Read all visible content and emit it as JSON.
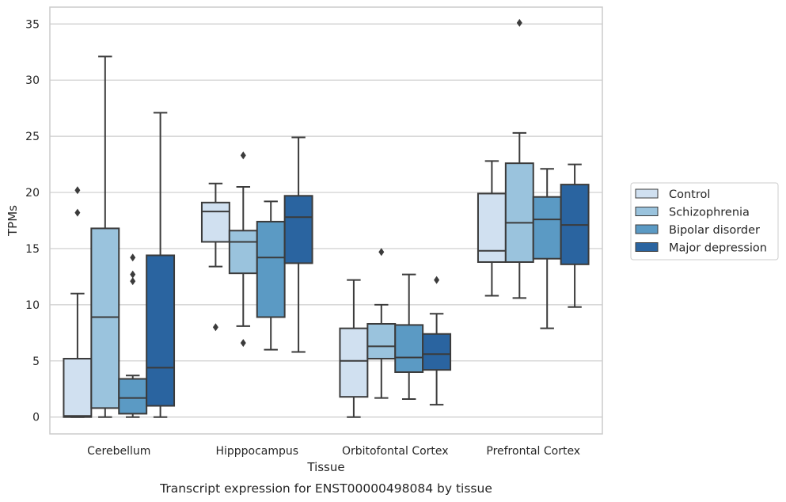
{
  "chart_data": {
    "type": "box",
    "caption": "Transcript expression for ENST00000498084 by tissue",
    "xlabel": "Tissue",
    "ylabel": "TPMs",
    "ylim": [
      -1.5,
      36.5
    ],
    "yticks": [
      0,
      5,
      10,
      15,
      20,
      25,
      30,
      35
    ],
    "grid": "horizontal",
    "legend_position": "right",
    "categories": [
      "Cerebellum",
      "Hipppocampus",
      "Orbitofontal Cortex",
      "Prefrontal Cortex"
    ],
    "series": [
      {
        "name": "Control",
        "color": "#d0e0f0",
        "boxes": [
          {
            "whisker_low": 0.0,
            "q1": 0.0,
            "median": 0.1,
            "q3": 5.2,
            "whisker_high": 11.0,
            "outliers": [
              18.2,
              20.2
            ]
          },
          {
            "whisker_low": 13.4,
            "q1": 15.6,
            "median": 18.3,
            "q3": 19.1,
            "whisker_high": 20.8,
            "outliers": [
              8.0
            ]
          },
          {
            "whisker_low": 0.0,
            "q1": 1.8,
            "median": 5.0,
            "q3": 7.9,
            "whisker_high": 12.2,
            "outliers": []
          },
          {
            "whisker_low": 10.8,
            "q1": 13.8,
            "median": 14.8,
            "q3": 19.9,
            "whisker_high": 22.8,
            "outliers": []
          }
        ]
      },
      {
        "name": "Schizophrenia",
        "color": "#9ac3dd",
        "boxes": [
          {
            "whisker_low": 0.0,
            "q1": 0.8,
            "median": 8.9,
            "q3": 16.8,
            "whisker_high": 32.1,
            "outliers": []
          },
          {
            "whisker_low": 8.1,
            "q1": 12.8,
            "median": 15.6,
            "q3": 16.6,
            "whisker_high": 20.5,
            "outliers": [
              6.6,
              23.3
            ]
          },
          {
            "whisker_low": 1.7,
            "q1": 5.2,
            "median": 6.3,
            "q3": 8.3,
            "whisker_high": 10.0,
            "outliers": [
              14.7
            ]
          },
          {
            "whisker_low": 10.6,
            "q1": 13.8,
            "median": 17.3,
            "q3": 22.6,
            "whisker_high": 25.3,
            "outliers": [
              35.1
            ]
          }
        ]
      },
      {
        "name": "Bipolar disorder",
        "color": "#5b9ac4",
        "boxes": [
          {
            "whisker_low": 0.0,
            "q1": 0.3,
            "median": 1.7,
            "q3": 3.4,
            "whisker_high": 3.7,
            "outliers": [
              12.1,
              12.7,
              14.2
            ]
          },
          {
            "whisker_low": 6.0,
            "q1": 8.9,
            "median": 14.2,
            "q3": 17.4,
            "whisker_high": 19.2,
            "outliers": []
          },
          {
            "whisker_low": 1.6,
            "q1": 4.0,
            "median": 5.3,
            "q3": 8.2,
            "whisker_high": 12.7,
            "outliers": []
          },
          {
            "whisker_low": 7.9,
            "q1": 14.1,
            "median": 17.6,
            "q3": 19.6,
            "whisker_high": 22.1,
            "outliers": []
          }
        ]
      },
      {
        "name": "Major depression",
        "color": "#2a64a0",
        "boxes": [
          {
            "whisker_low": 0.0,
            "q1": 1.0,
            "median": 4.4,
            "q3": 14.4,
            "whisker_high": 27.1,
            "outliers": []
          },
          {
            "whisker_low": 5.8,
            "q1": 13.7,
            "median": 17.8,
            "q3": 19.7,
            "whisker_high": 24.9,
            "outliers": []
          },
          {
            "whisker_low": 1.1,
            "q1": 4.2,
            "median": 5.6,
            "q3": 7.4,
            "whisker_high": 9.2,
            "outliers": [
              12.2
            ]
          },
          {
            "whisker_low": 9.8,
            "q1": 13.6,
            "median": 17.1,
            "q3": 20.7,
            "whisker_high": 22.5,
            "outliers": []
          }
        ]
      }
    ]
  }
}
